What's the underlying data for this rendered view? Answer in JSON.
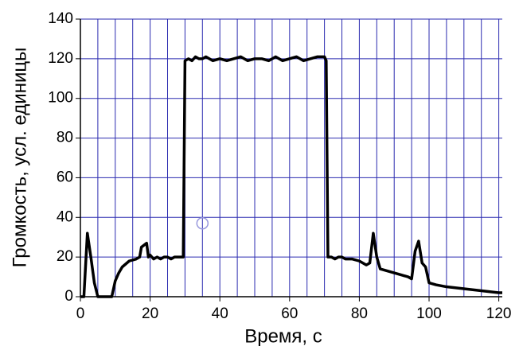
{
  "chart_data": {
    "type": "line",
    "xlabel": "Время, с",
    "ylabel": "Громкость, усл. единицы",
    "xlim": [
      0,
      121
    ],
    "ylim": [
      0,
      140
    ],
    "xticks": [
      0,
      20,
      40,
      60,
      80,
      100,
      120
    ],
    "yticks": [
      0,
      20,
      40,
      60,
      80,
      100,
      120,
      140
    ],
    "xgrid": [
      0,
      5,
      10,
      15,
      20,
      25,
      30,
      35,
      40,
      45,
      50,
      55,
      60,
      65,
      70,
      75,
      80,
      85,
      90,
      95,
      100,
      105,
      110,
      115,
      120
    ],
    "grid": true,
    "grid_color": "#2b2bb0",
    "series": [
      {
        "color": "#000000",
        "x": [
          0,
          1,
          2,
          3,
          4,
          5,
          8,
          9,
          10,
          11,
          12,
          14,
          16,
          17,
          17.5,
          19,
          19.5,
          20,
          21,
          22,
          23,
          24,
          25,
          26,
          27,
          28,
          29,
          29.5,
          30,
          31,
          32,
          33,
          34,
          35,
          36,
          38,
          40,
          42,
          44,
          46,
          48,
          50,
          52,
          54,
          56,
          58,
          60,
          62,
          64,
          66,
          68,
          70,
          70.5,
          71,
          72,
          73,
          74,
          75,
          76,
          78,
          80,
          82,
          83,
          84,
          85,
          86,
          88,
          90,
          92,
          94,
          95,
          96,
          97,
          98,
          99,
          100,
          102,
          105,
          110,
          115,
          120,
          121
        ],
        "values": [
          0,
          0,
          32,
          20,
          7,
          0,
          0,
          0,
          8,
          12,
          15,
          18,
          19,
          20,
          25,
          27,
          20,
          21,
          19,
          20,
          19,
          20,
          20,
          19,
          20,
          20,
          20,
          20,
          119,
          120,
          119,
          121,
          120,
          120,
          121,
          119,
          120,
          119,
          120,
          121,
          119,
          120,
          120,
          119,
          121,
          119,
          120,
          121,
          119,
          120,
          121,
          121,
          119,
          20,
          20,
          19,
          20,
          20,
          19,
          19,
          18,
          16,
          17,
          32,
          20,
          14,
          13,
          12,
          11,
          10,
          9,
          23,
          28,
          17,
          15,
          7,
          6,
          5,
          4,
          3,
          2,
          2
        ]
      }
    ],
    "marker": {
      "x": 35,
      "y": 37,
      "color": "#9999dd"
    }
  }
}
